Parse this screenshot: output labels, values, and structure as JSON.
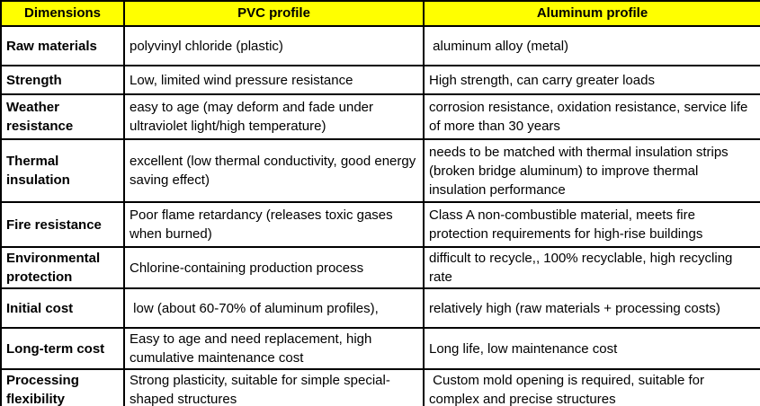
{
  "table": {
    "columns": [
      {
        "label": "Dimensions"
      },
      {
        "label": "PVC profile"
      },
      {
        "label": "Aluminum profile"
      }
    ],
    "rows": [
      {
        "dimension": "Raw materials",
        "pvc": "polyvinyl chloride (plastic)",
        "aluminum": " aluminum alloy (metal)"
      },
      {
        "dimension": "Strength",
        "pvc": "Low, limited wind pressure resistance",
        "aluminum": "High strength, can carry greater loads"
      },
      {
        "dimension": "Weather resistance",
        "pvc": "easy to age (may deform and fade under ultraviolet light/high temperature)",
        "aluminum": "corrosion resistance, oxidation resistance, service life of more than 30 years"
      },
      {
        "dimension": "Thermal insulation",
        "pvc": "excellent (low thermal conductivity, good energy saving effect)",
        "aluminum": "needs to be matched with thermal insulation strips (broken bridge aluminum) to improve thermal insulation performance"
      },
      {
        "dimension": "Fire resistance",
        "pvc": "Poor flame retardancy (releases toxic gases when burned)",
        "aluminum": "Class A non-combustible material, meets fire protection requirements for high-rise buildings"
      },
      {
        "dimension": "Environmental protection",
        "pvc": "Chlorine-containing production process",
        "aluminum": "difficult to recycle,, 100% recyclable, high recycling rate"
      },
      {
        "dimension": "Initial cost",
        "pvc": " low (about 60-70% of aluminum profiles),",
        "aluminum": "relatively high (raw materials + processing costs)"
      },
      {
        "dimension": "Long-term cost",
        "pvc": "Easy to age and need replacement, high cumulative maintenance cost",
        "aluminum": "Long life, low maintenance cost"
      },
      {
        "dimension": "Processing flexibility",
        "pvc": "Strong plasticity, suitable for simple special-shaped structures",
        "aluminum": " Custom mold opening is required, suitable for complex and precise structures"
      }
    ],
    "colors": {
      "header_bg": "#FFFF00",
      "border": "#000000",
      "text": "#000000",
      "background": "#FFFFFF"
    }
  }
}
